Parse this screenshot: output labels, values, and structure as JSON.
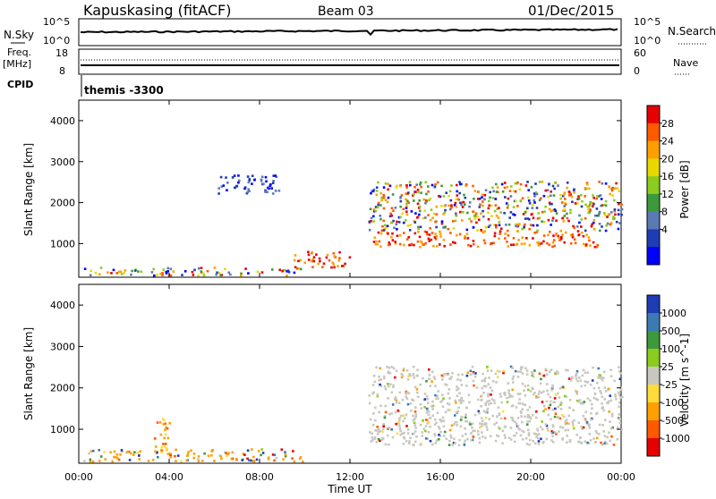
{
  "header": {
    "station": "Kapuskasing (fitACF)",
    "beam": "Beam 03",
    "date": "01/Dec/2015"
  },
  "top_panels": {
    "nsky_label": "N.Sky",
    "nsearch_label": "N.Search",
    "nsky_ticks": [
      "10^5",
      "10^0"
    ],
    "nsearch_ticks": [
      "10^5",
      "10^0"
    ],
    "freq_label": "Freq.",
    "freq_unit": "[MHz]",
    "freq_ticks": [
      "18",
      "8"
    ],
    "nave_label": "Nave",
    "nave_ticks": [
      "60",
      "0"
    ],
    "cpid_label": "CPID",
    "cpid_value": "themis -3300"
  },
  "chart_data": [
    {
      "type": "heatmap",
      "title": "",
      "xlabel": "Time UT",
      "ylabel": "Slant Range [km]",
      "x_ticks": [
        "00:00",
        "04:00",
        "08:00",
        "12:00",
        "16:00",
        "20:00",
        "00:00"
      ],
      "y_ticks": [
        "4000",
        "3000",
        "2000",
        "1000"
      ],
      "xlim_hours": [
        0,
        24
      ],
      "ylim_km": [
        180,
        4500
      ],
      "colorbar": {
        "label": "Power [dB]",
        "ticks": [
          "28",
          "24",
          "20",
          "16",
          "12",
          "8",
          "4"
        ],
        "colors": [
          "#e60000",
          "#ff5a00",
          "#ffa000",
          "#e8d800",
          "#8ccc1e",
          "#3c9a3c",
          "#5a7ab4",
          "#1e3cb4",
          "#0000ff"
        ]
      },
      "series": [
        {
          "time": [
            0.2,
            10
          ],
          "range_km": [
            200,
            400
          ],
          "level": "mixed"
        },
        {
          "time": [
            9.5,
            12
          ],
          "range_km": [
            400,
            800
          ],
          "level": "high"
        },
        {
          "time": [
            13,
            23
          ],
          "range_km": [
            900,
            1300
          ],
          "level": "high"
        },
        {
          "time": [
            12.8,
            24
          ],
          "range_km": [
            1300,
            2500
          ],
          "level": "mixed"
        },
        {
          "time": [
            6,
            9
          ],
          "range_km": [
            2200,
            2650
          ],
          "level": "low"
        }
      ]
    },
    {
      "type": "heatmap",
      "title": "",
      "xlabel": "Time UT",
      "ylabel": "Slant Range [km]",
      "x_ticks": [
        "00:00",
        "04:00",
        "08:00",
        "12:00",
        "16:00",
        "20:00",
        "00:00"
      ],
      "y_ticks": [
        "4000",
        "3000",
        "2000",
        "1000"
      ],
      "xlim_hours": [
        0,
        24
      ],
      "ylim_km": [
        180,
        4500
      ],
      "colorbar": {
        "label": "Velocity [m s^-1]",
        "ticks": [
          "1000",
          "500",
          "100",
          "25",
          "-25",
          "-100",
          "-500",
          "-1000"
        ],
        "colors": [
          "#1e3cb4",
          "#3c7ab4",
          "#3c9a3c",
          "#8ccc1e",
          "#c8c8c0",
          "#ffdc3c",
          "#ffa000",
          "#ff5a00",
          "#e60000"
        ]
      },
      "series": [
        {
          "time": [
            0.2,
            10
          ],
          "range_km": [
            200,
            500
          ],
          "level": "mixed"
        },
        {
          "time": [
            12.8,
            24
          ],
          "range_km": [
            600,
            2500
          ],
          "level": "near-zero"
        },
        {
          "time": [
            3.3,
            4
          ],
          "range_km": [
            400,
            1300
          ],
          "level": "negative"
        }
      ]
    }
  ]
}
